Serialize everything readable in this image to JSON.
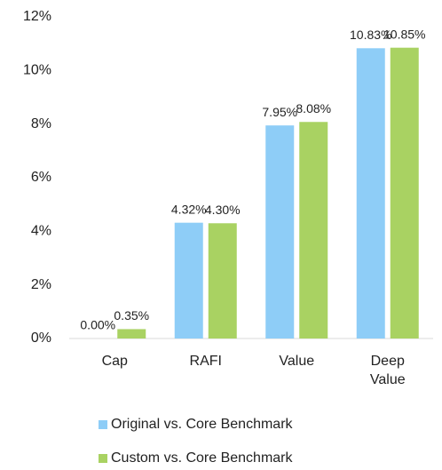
{
  "chart_data": {
    "type": "bar",
    "categories": [
      "Cap",
      "RAFI",
      "Value",
      "Deep Value"
    ],
    "series": [
      {
        "name": "Original vs. Core Benchmark",
        "color": "#8ecdf7",
        "values": [
          0.0,
          4.32,
          7.95,
          10.83
        ],
        "value_labels": [
          "0.00%",
          "4.32%",
          "7.95%",
          "10.83%"
        ]
      },
      {
        "name": "Custom vs. Core Benchmark",
        "color": "#a9d262",
        "values": [
          0.35,
          4.3,
          8.08,
          10.85
        ],
        "value_labels": [
          "0.35%",
          "4.30%",
          "8.08%",
          "10.85%"
        ]
      }
    ],
    "ylim": [
      0,
      12
    ],
    "yticks": [
      {
        "value": 0,
        "label": "0%"
      },
      {
        "value": 2,
        "label": "2%"
      },
      {
        "value": 4,
        "label": "4%"
      },
      {
        "value": 6,
        "label": "6%"
      },
      {
        "value": 8,
        "label": "8%"
      },
      {
        "value": 10,
        "label": "10%"
      },
      {
        "value": 12,
        "label": "12%"
      }
    ],
    "grid": false,
    "legend": "bottom"
  }
}
